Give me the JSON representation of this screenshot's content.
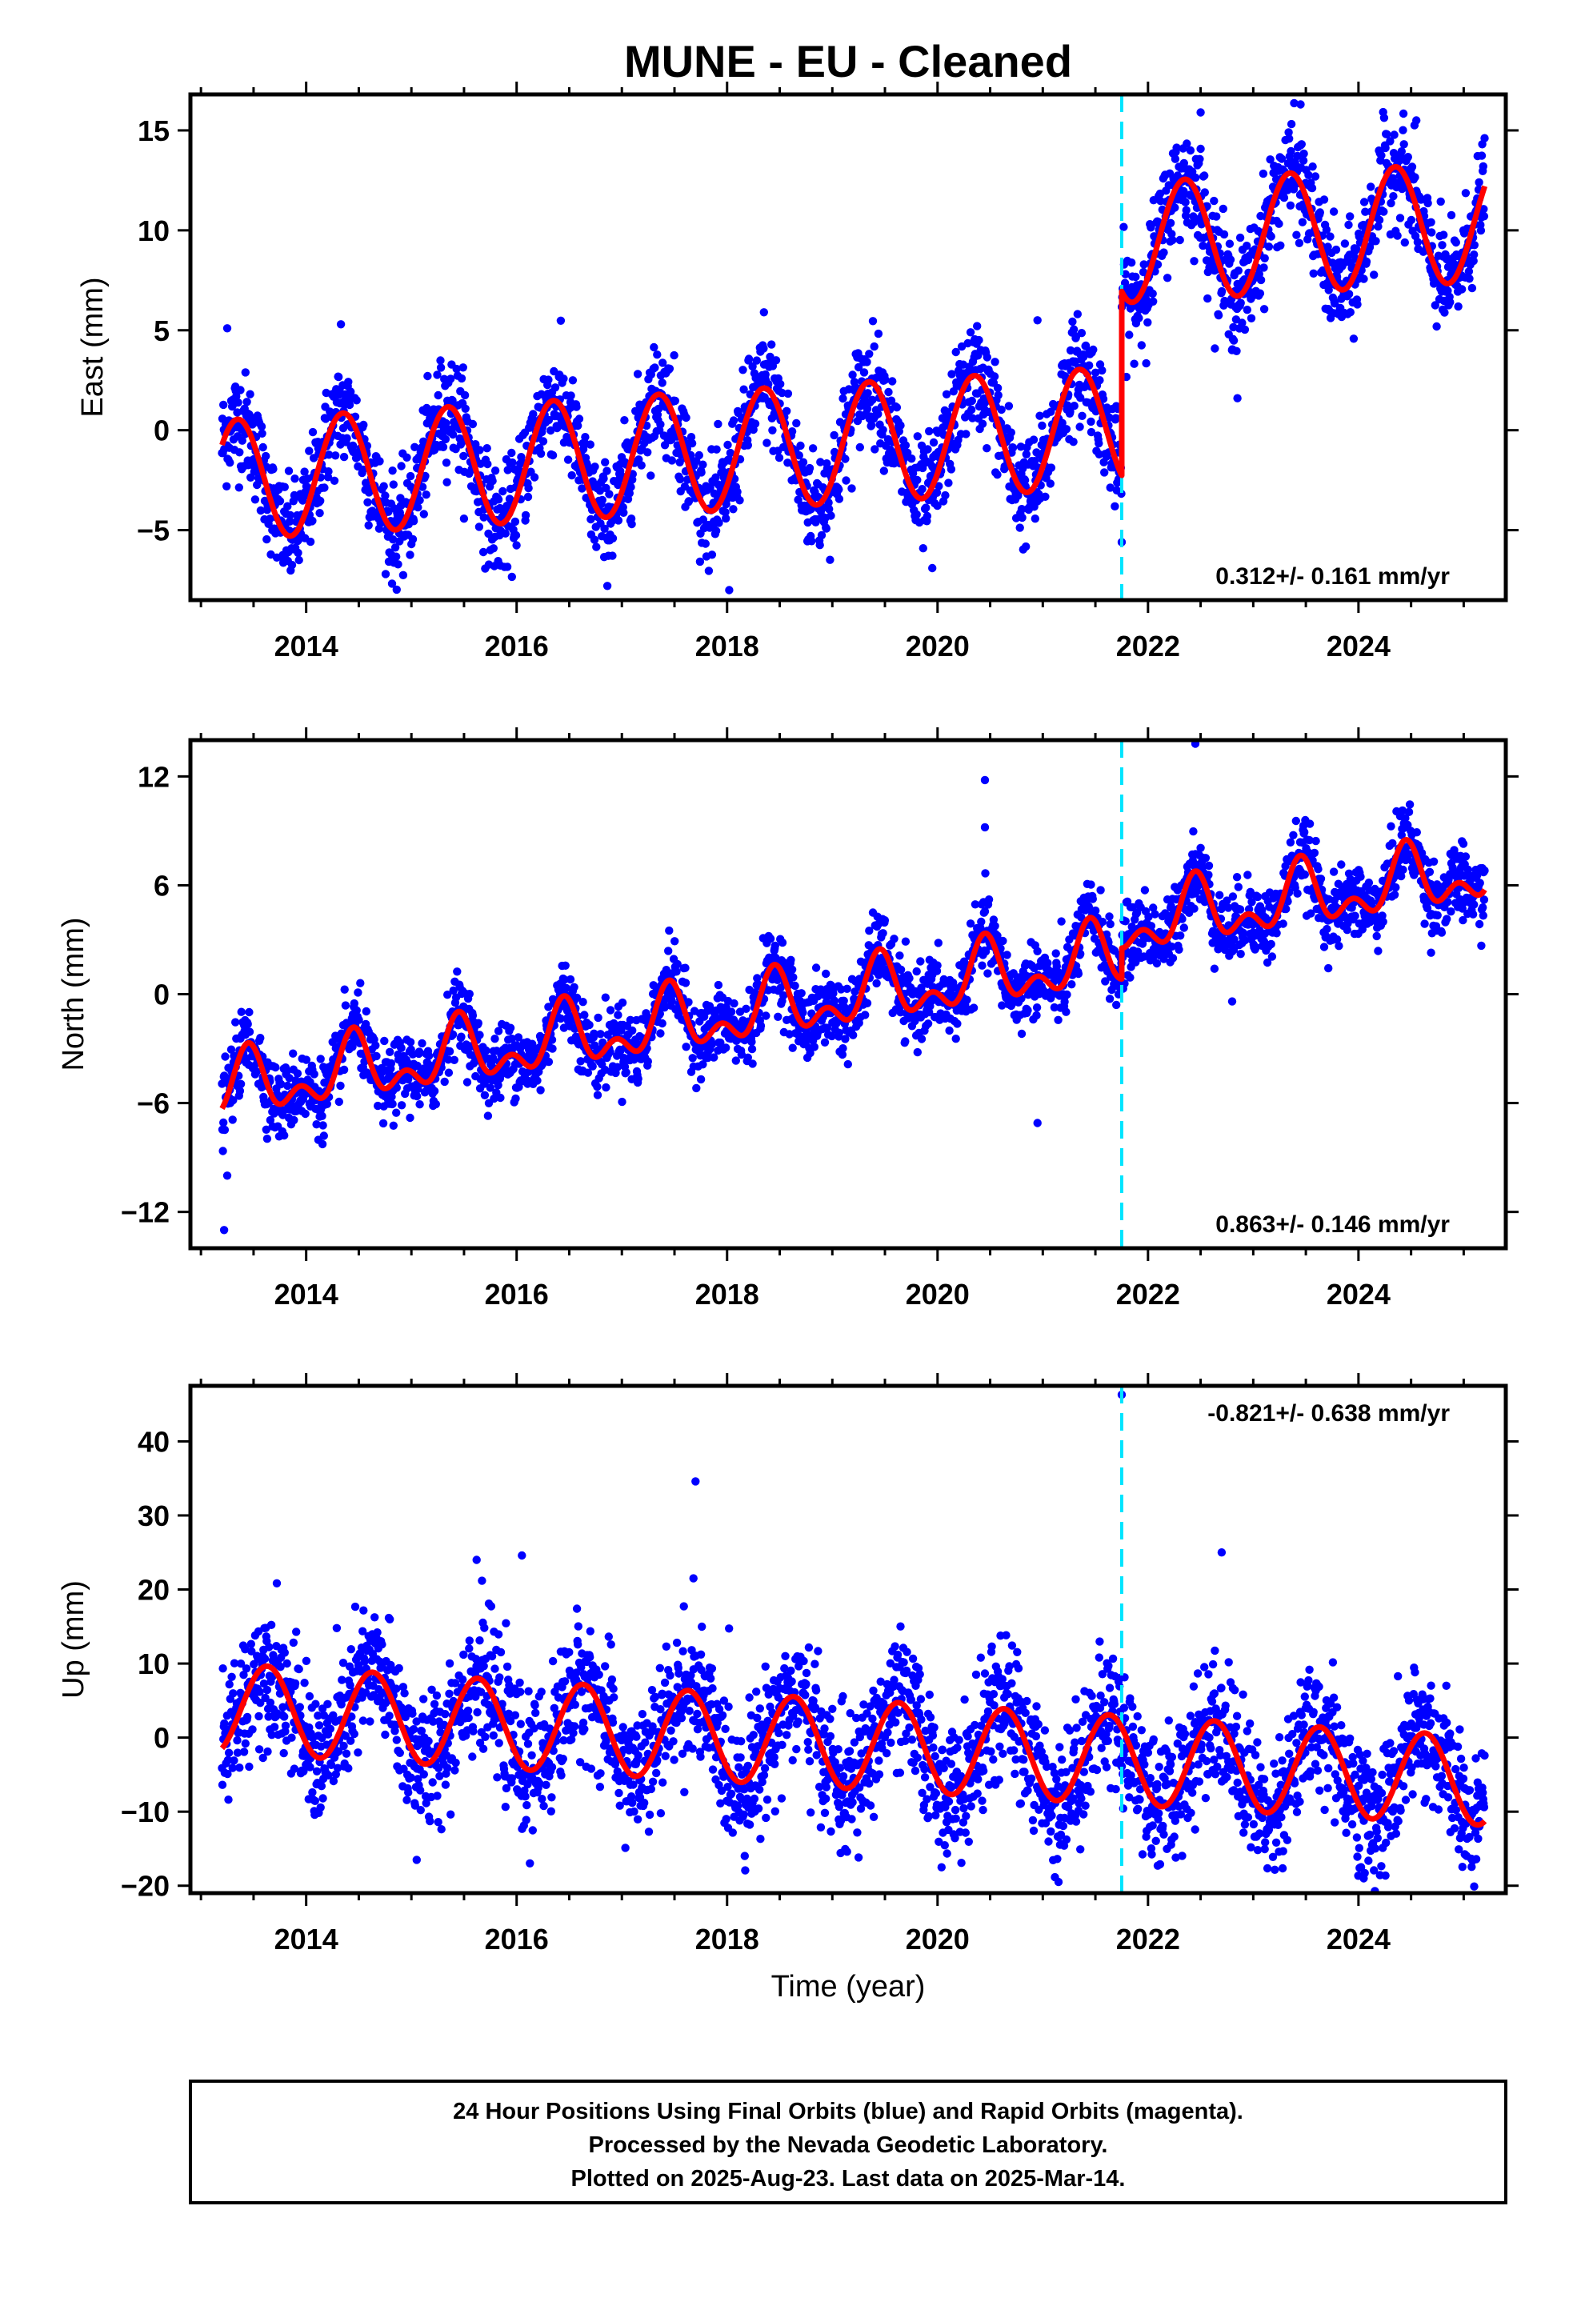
{
  "title": "MUNE  - EU - Cleaned",
  "xlabel": "Time (year)",
  "footer": [
    "24 Hour Positions Using Final Orbits (blue) and Rapid Orbits (magenta).",
    "Processed by the Nevada Geodetic Laboratory.",
    "Plotted on 2025-Aug-23. Last data on 2025-Mar-14."
  ],
  "colors": {
    "points": "#0000ff",
    "model": "#ff0000",
    "event_line": "#00e5ff",
    "frame": "#000000"
  },
  "chart_data": [
    {
      "type": "scatter",
      "name": "east",
      "ylabel": "East (mm)",
      "rate_label": "0.312+/- 0.161 mm/yr",
      "rate_position": "bottom-right",
      "xlim": [
        2012.9,
        2025.4
      ],
      "ylim": [
        -8.5,
        16.8
      ],
      "xticks": [
        2014,
        2016,
        2018,
        2020,
        2022,
        2024
      ],
      "xtick_labels": [
        "2014",
        "2016",
        "2018",
        "2020",
        "2022",
        "2024"
      ],
      "yticks": [
        -5,
        0,
        5,
        10,
        15
      ],
      "ytick_labels": [
        "−5",
        "0",
        "5",
        "10",
        "15"
      ],
      "event_epoch": 2021.75,
      "data_range": [
        2013.2,
        2025.2
      ],
      "model": {
        "rate_mm_yr": 0.312,
        "intercept_mm": -2.5,
        "ref_year": 2013.2,
        "annual_amp_mm": 3.0,
        "annual_phase_year": 0.35,
        "offset_at_event_mm": 9.2
      },
      "scatter_sd_mm": 1.3,
      "outliers": [
        [
          2013.25,
          5.1
        ],
        [
          2014.33,
          5.3
        ],
        [
          2018.35,
          5.9
        ],
        [
          2020.95,
          5.5
        ],
        [
          2022.85,
          1.6
        ],
        [
          2023.45,
          16.3
        ],
        [
          2022.5,
          15.9
        ],
        [
          2024.55,
          15.5
        ],
        [
          2018.02,
          -8.0
        ],
        [
          2019.95,
          -6.9
        ],
        [
          2021.75,
          -5.6
        ]
      ]
    },
    {
      "type": "scatter",
      "name": "north",
      "ylabel": "North (mm)",
      "rate_label": "0.863+/- 0.146 mm/yr",
      "rate_position": "bottom-right",
      "xlim": [
        2012.9,
        2025.4
      ],
      "ylim": [
        -14,
        14
      ],
      "xticks": [
        2014,
        2016,
        2018,
        2020,
        2022,
        2024
      ],
      "xtick_labels": [
        "2014",
        "2016",
        "2018",
        "2020",
        "2022",
        "2024"
      ],
      "yticks": [
        -12,
        -6,
        0,
        6,
        12
      ],
      "ytick_labels": [
        "−12",
        "−6",
        "0",
        "6",
        "12"
      ],
      "event_epoch": 2021.75,
      "data_range": [
        2013.2,
        2025.2
      ],
      "model": {
        "rate_mm_yr": 0.863,
        "intercept_mm": -5.3,
        "ref_year": 2013.2,
        "annual_amp_mm": 1.4,
        "annual_phase_year": 0.45,
        "semiannual_amp_mm": 1.0,
        "offset_at_event_mm": 1.7
      },
      "scatter_sd_mm": 1.0,
      "outliers": [
        [
          2013.22,
          -13.0
        ],
        [
          2013.25,
          -10.0
        ],
        [
          2020.45,
          11.8
        ],
        [
          2020.45,
          9.2
        ],
        [
          2020.95,
          -7.1
        ],
        [
          2022.45,
          13.8
        ],
        [
          2022.8,
          -0.4
        ]
      ]
    },
    {
      "type": "scatter",
      "name": "up",
      "ylabel": "Up (mm)",
      "rate_label": "-0.821+/- 0.638 mm/yr",
      "rate_position": "top-right",
      "xlim": [
        2012.9,
        2025.4
      ],
      "ylim": [
        -21,
        47.5
      ],
      "xticks": [
        2014,
        2016,
        2018,
        2020,
        2022,
        2024
      ],
      "xtick_labels": [
        "2014",
        "2016",
        "2018",
        "2020",
        "2022",
        "2024"
      ],
      "yticks": [
        -20,
        -10,
        0,
        10,
        20,
        30,
        40
      ],
      "ytick_labels": [
        "−20",
        "−10",
        "0",
        "10",
        "20",
        "30",
        "40"
      ],
      "event_epoch": 2021.75,
      "data_range": [
        2013.2,
        2025.2
      ],
      "model": {
        "rate_mm_yr": -0.821,
        "intercept_mm": 4.0,
        "ref_year": 2013.2,
        "annual_amp_mm": 6.0,
        "annual_phase_year": 0.63,
        "offset_at_event_mm": 0.0
      },
      "scatter_sd_mm": 4.5,
      "outliers": [
        [
          2021.75,
          46.3
        ],
        [
          2017.7,
          34.6
        ],
        [
          2017.68,
          21.5
        ],
        [
          2016.05,
          24.6
        ],
        [
          2015.62,
          24.0
        ],
        [
          2022.7,
          25.0
        ],
        [
          2021.15,
          -19.5
        ],
        [
          2025.1,
          -20.1
        ],
        [
          2024.05,
          -19.0
        ],
        [
          2015.05,
          -16.5
        ]
      ]
    }
  ]
}
